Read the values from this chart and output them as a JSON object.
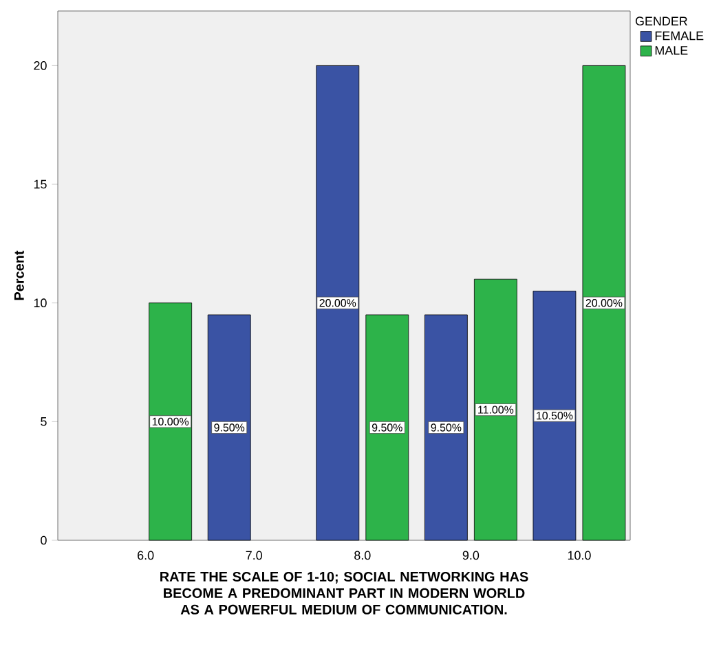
{
  "chart_data": {
    "type": "bar",
    "xlabel": "RATE THE SCALE OF 1-10; SOCIAL NETWORKING HAS BECOME A PREDOMINANT PART IN MODERN WORLD AS A POWERFUL MEDIUM OF COMMUNICATION.",
    "ylabel": "Percent",
    "legend_title": "GENDER",
    "legend": "top right",
    "categories": [
      "6.0",
      "7.0",
      "8.0",
      "9.0",
      "10.0"
    ],
    "ylim": [
      0,
      22.3
    ],
    "yticks": [
      0,
      5,
      10,
      15,
      20
    ],
    "series": [
      {
        "name": "FEMALE",
        "color": "#3a53a4",
        "values": [
          null,
          9.5,
          20,
          9.5,
          10.5
        ],
        "value_labels": [
          null,
          "9.50%",
          "20.00%",
          "9.50%",
          "10.50%"
        ]
      },
      {
        "name": "MALE",
        "color": "#2db34a",
        "values": [
          10,
          null,
          9.5,
          11,
          20
        ],
        "value_labels": [
          "10.00%",
          null,
          "9.50%",
          "11.00%",
          "20.00%"
        ]
      }
    ]
  }
}
